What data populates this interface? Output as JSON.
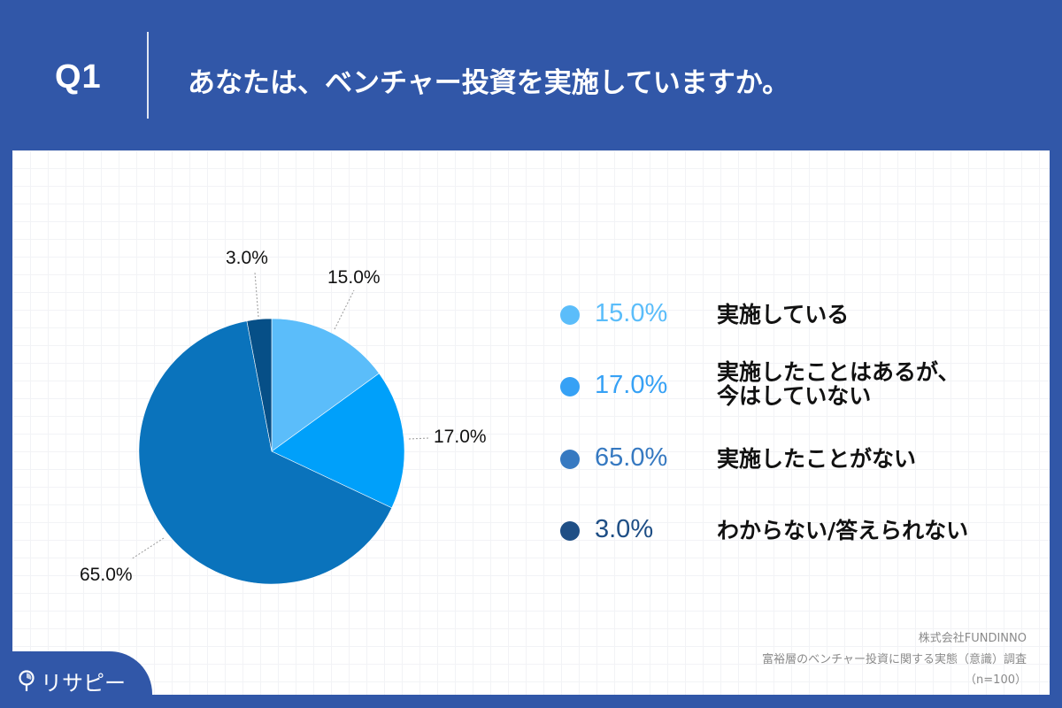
{
  "header": {
    "question_number": "Q1",
    "question_text": "あなたは、ベンチャー投資を実施していますか。"
  },
  "legend": [
    {
      "value": "15.0%",
      "label_lines": [
        "実施している"
      ],
      "color": "#5bbdfa"
    },
    {
      "value": "17.0%",
      "label_lines": [
        "実施したことはあるが、",
        "今はしていない"
      ],
      "color": "#36a1f5"
    },
    {
      "value": "65.0%",
      "label_lines": [
        "実施したことがない"
      ],
      "color": "#3679c1"
    },
    {
      "value": "3.0%",
      "label_lines": [
        "わからない/答えられない"
      ],
      "color": "#1e4e85"
    }
  ],
  "pie_labels": [
    "15.0%",
    "17.0%",
    "65.0%",
    "3.0%"
  ],
  "source": {
    "company": "株式会社FUNDINNO",
    "survey": "富裕層のベンチャー投資に関する実態（意識）調査",
    "sample": "（n=100）"
  },
  "logo": {
    "text": "リサピー"
  },
  "chart_data": {
    "type": "pie",
    "title": "あなたは、ベンチャー投資を実施していますか。",
    "categories": [
      "実施している",
      "実施したことはあるが、今はしていない",
      "実施したことがない",
      "わからない/答えられない"
    ],
    "values": [
      15.0,
      17.0,
      65.0,
      3.0
    ],
    "unit": "%",
    "colors": [
      "#5bbdfa",
      "#00a0fa",
      "#0a73bc",
      "#064f87"
    ],
    "legend_position": "right",
    "n": 100
  }
}
